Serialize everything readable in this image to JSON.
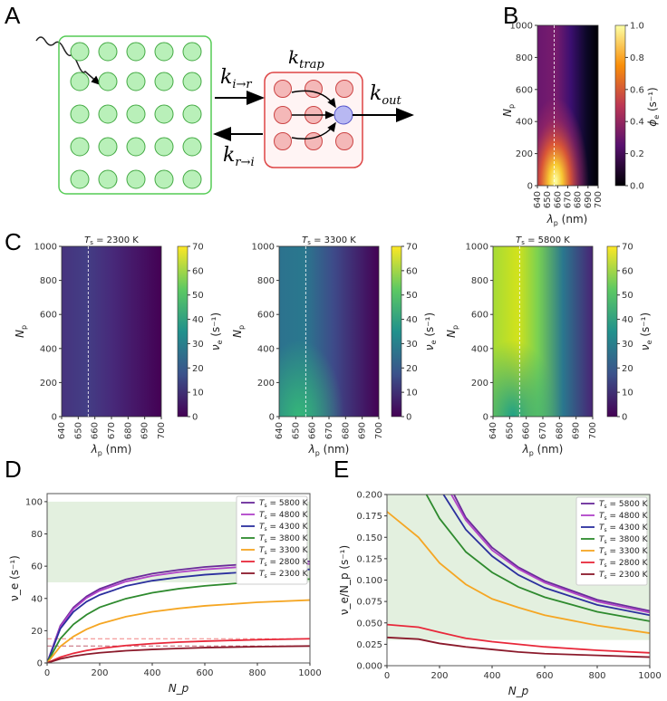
{
  "panels": {
    "a": {
      "label": "A",
      "k_in": "k",
      "k_in_sub": "i→r",
      "k_back": "k",
      "k_back_sub": "r→i",
      "k_trap": "k",
      "k_trap_sub": "trap",
      "k_out": "k",
      "k_out_sub": "out"
    },
    "b": {
      "label": "B",
      "xlabel": "λ",
      "xlabel_sub": "p",
      "xlabel_unit": " (nm)",
      "ylabel": "N",
      "ylabel_sub": "p",
      "cbar_label": "ϕ",
      "cbar_sub": "e",
      "cbar_unit": " (s⁻¹)",
      "xticks": [
        "640",
        "650",
        "660",
        "670",
        "680",
        "690",
        "700"
      ],
      "yticks": [
        "0",
        "200",
        "400",
        "600",
        "800",
        "1000"
      ],
      "cbar_ticks": [
        "0.0",
        "0.2",
        "0.4",
        "0.6",
        "0.8",
        "1.0"
      ],
      "dashed_line_lambda": 656
    },
    "c": {
      "label": "C",
      "xlabel": "λ",
      "xlabel_sub": "p",
      "xlabel_unit": " (nm)",
      "ylabel": "N",
      "ylabel_sub": "p",
      "cbar_label": "ν",
      "cbar_sub": "e",
      "cbar_unit": " (s⁻¹)",
      "xticks": [
        "640",
        "650",
        "660",
        "670",
        "680",
        "690",
        "700"
      ],
      "yticks": [
        "0",
        "200",
        "400",
        "600",
        "800",
        "1000"
      ],
      "cbar_ticks": [
        "0",
        "10",
        "20",
        "30",
        "40",
        "50",
        "60",
        "70"
      ],
      "maps": [
        {
          "title": "T",
          "title_sub": "s",
          "title_rest": " = 2300 K"
        },
        {
          "title": "T",
          "title_sub": "s",
          "title_rest": " = 3300 K"
        },
        {
          "title": "T",
          "title_sub": "s",
          "title_rest": " = 5800 K"
        }
      ]
    },
    "d": {
      "label": "D"
    },
    "e": {
      "label": "E"
    }
  },
  "chart_data": [
    {
      "id": "D",
      "type": "line",
      "xlabel": "N_p",
      "ylabel": "ν_e (s⁻¹)",
      "xlim": [
        0,
        1000
      ],
      "ylim": [
        0,
        105
      ],
      "xticks": [
        0,
        200,
        400,
        600,
        800,
        1000
      ],
      "yticks": [
        0,
        20,
        40,
        60,
        80,
        100
      ],
      "legend": "top-right",
      "shaded_band": [
        50,
        100
      ],
      "dashed_lines": [
        {
          "y": 15,
          "color": "#f08080"
        },
        {
          "y": 10.5,
          "color": "#c06070"
        }
      ],
      "series": [
        {
          "name": "T_s = 5800 K",
          "label": "T",
          "sub": "s",
          "rest": " = 5800 K",
          "color": "#6a2a9a",
          "x": [
            0,
            50,
            100,
            150,
            200,
            300,
            400,
            500,
            600,
            800,
            1000
          ],
          "y": [
            0,
            23,
            34.4,
            41.3,
            45.9,
            51.8,
            55.4,
            57.7,
            59.5,
            61.7,
            63
          ]
        },
        {
          "name": "T_s = 4800 K",
          "label": "T",
          "sub": "s",
          "rest": " = 4800 K",
          "color": "#b043c8",
          "x": [
            0,
            50,
            100,
            150,
            200,
            300,
            400,
            500,
            600,
            800,
            1000
          ],
          "y": [
            0,
            22.4,
            33.5,
            40.3,
            44.8,
            50.5,
            54,
            56.3,
            58,
            60.2,
            61.4
          ]
        },
        {
          "name": "T_s = 4300 K",
          "label": "T",
          "sub": "s",
          "rest": " = 4300 K",
          "color": "#2b2f9e",
          "x": [
            0,
            50,
            100,
            150,
            200,
            300,
            400,
            500,
            600,
            800,
            1000
          ],
          "y": [
            0,
            21.2,
            31.7,
            38,
            42.2,
            47.7,
            51,
            53.1,
            54.7,
            56.8,
            58
          ]
        },
        {
          "name": "T_s = 3800 K",
          "label": "T",
          "sub": "s",
          "rest": " = 3800 K",
          "color": "#2e8a2e",
          "x": [
            0,
            50,
            100,
            150,
            200,
            300,
            400,
            500,
            600,
            800,
            1000
          ],
          "y": [
            0,
            15,
            23.9,
            29.9,
            34.5,
            39.9,
            43.5,
            46,
            47.8,
            50.4,
            52
          ]
        },
        {
          "name": "T_s = 3300 K",
          "label": "T",
          "sub": "s",
          "rest": " = 3300 K",
          "color": "#f5a623",
          "x": [
            0,
            50,
            100,
            150,
            200,
            300,
            400,
            500,
            600,
            800,
            1000
          ],
          "y": [
            0,
            10.2,
            16.4,
            20.9,
            24.2,
            28.7,
            31.7,
            33.8,
            35.4,
            37.6,
            39
          ]
        },
        {
          "name": "T_s = 2800 K",
          "label": "T",
          "sub": "s",
          "rest": " = 2800 K",
          "color": "#e8283a",
          "x": [
            0,
            50,
            100,
            150,
            200,
            300,
            400,
            500,
            600,
            800,
            1000
          ],
          "y": [
            0,
            3.6,
            6,
            7.7,
            9,
            10.8,
            12,
            12.9,
            13.5,
            14.4,
            15
          ]
        },
        {
          "name": "T_s = 2300 K",
          "label": "T",
          "sub": "s",
          "rest": " = 2300 K",
          "color": "#8b1a2b",
          "x": [
            0,
            50,
            100,
            150,
            200,
            300,
            400,
            500,
            600,
            800,
            1000
          ],
          "y": [
            0,
            2.5,
            4.2,
            5.4,
            6.3,
            7.6,
            8.4,
            9,
            9.5,
            10.1,
            10.5
          ]
        }
      ]
    },
    {
      "id": "E",
      "type": "line",
      "xlabel": "N_p",
      "ylabel": "ν_e/N_p (s⁻¹)",
      "xlim": [
        0,
        1000
      ],
      "ylim": [
        0,
        0.2
      ],
      "xticks": [
        0,
        200,
        400,
        600,
        800,
        1000
      ],
      "yticks": [
        "0.000",
        "0.025",
        "0.050",
        "0.075",
        "0.100",
        "0.125",
        "0.150",
        "0.175",
        "0.200"
      ],
      "legend": "top-right",
      "shaded_band": [
        0.03,
        0.2
      ],
      "series": [
        {
          "name": "T_s = 5800 K",
          "label": "T",
          "sub": "s",
          "rest": " = 5800 K",
          "color": "#6a2a9a",
          "x": [
            255,
            300,
            400,
            500,
            600,
            800,
            1000
          ],
          "y": [
            0.2,
            0.173,
            0.138,
            0.115,
            0.099,
            0.077,
            0.064
          ]
        },
        {
          "name": "T_s = 4800 K",
          "label": "T",
          "sub": "s",
          "rest": " = 4800 K",
          "color": "#b043c8",
          "x": [
            245,
            300,
            400,
            500,
            600,
            800,
            1000
          ],
          "y": [
            0.2,
            0.17,
            0.135,
            0.113,
            0.097,
            0.075,
            0.062
          ]
        },
        {
          "name": "T_s = 4300 K",
          "label": "T",
          "sub": "s",
          "rest": " = 4300 K",
          "color": "#2b2f9e",
          "x": [
            215,
            300,
            400,
            500,
            600,
            800,
            1000
          ],
          "y": [
            0.2,
            0.159,
            0.128,
            0.106,
            0.091,
            0.071,
            0.059
          ]
        },
        {
          "name": "T_s = 3800 K",
          "label": "T",
          "sub": "s",
          "rest": " = 3800 K",
          "color": "#2e8a2e",
          "x": [
            150,
            200,
            300,
            400,
            500,
            600,
            800,
            1000
          ],
          "y": [
            0.2,
            0.172,
            0.133,
            0.109,
            0.092,
            0.08,
            0.063,
            0.052
          ]
        },
        {
          "name": "T_s = 3300 K",
          "label": "T",
          "sub": "s",
          "rest": " = 3300 K",
          "color": "#f5a623",
          "x": [
            0,
            120,
            200,
            300,
            400,
            500,
            600,
            800,
            1000
          ],
          "y": [
            0.18,
            0.15,
            0.12,
            0.095,
            0.078,
            0.068,
            0.059,
            0.047,
            0.038
          ]
        },
        {
          "name": "T_s = 2800 K",
          "label": "T",
          "sub": "s",
          "rest": " = 2800 K",
          "color": "#e8283a",
          "x": [
            0,
            120,
            200,
            300,
            400,
            500,
            600,
            800,
            1000
          ],
          "y": [
            0.048,
            0.045,
            0.039,
            0.032,
            0.028,
            0.025,
            0.022,
            0.018,
            0.015
          ]
        },
        {
          "name": "T_s = 2300 K",
          "label": "T",
          "sub": "s",
          "rest": " = 2300 K",
          "color": "#8b1a2b",
          "x": [
            0,
            120,
            200,
            300,
            400,
            500,
            600,
            800,
            1000
          ],
          "y": [
            0.033,
            0.031,
            0.026,
            0.022,
            0.019,
            0.016,
            0.014,
            0.012,
            0.01
          ]
        }
      ]
    }
  ]
}
